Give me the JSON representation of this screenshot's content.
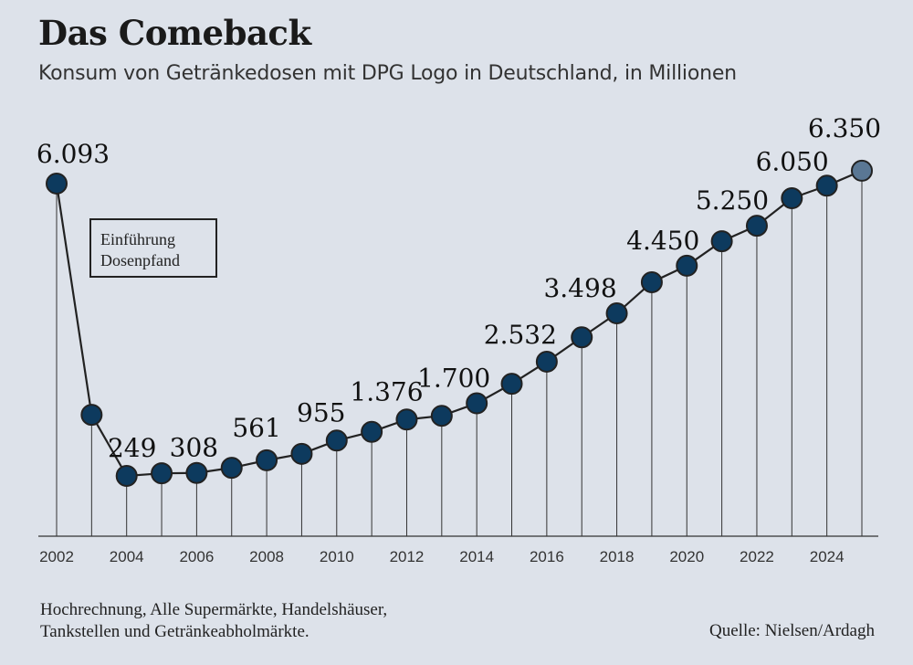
{
  "title": "Das Comeback",
  "subtitle": "Konsum von Getränkedosen mit DPG Logo in Deutschland, in Millionen",
  "annotation": {
    "line1": "Einführung",
    "line2": "Dosenpfand"
  },
  "footnote": {
    "line1": "Hochrechnung, Alle Supermärkte, Handelshäuser,",
    "line2": "Tankstellen und Getränkeabholmärkte."
  },
  "source": "Quelle: Nielsen/Ardagh",
  "colors": {
    "background": "#dde2ea",
    "point": "#0d3a5e",
    "projected_point": "#5a7794",
    "line": "#222222"
  },
  "chart_data": {
    "type": "line",
    "title": "Das Comeback",
    "subtitle": "Konsum von Getränkedosen mit DPG Logo in Deutschland, in Millionen",
    "xlabel": "",
    "ylabel": "",
    "x": [
      2002,
      2003,
      2004,
      2005,
      2006,
      2007,
      2008,
      2009,
      2010,
      2011,
      2012,
      2013,
      2014,
      2015,
      2016,
      2017,
      2018,
      2019,
      2020,
      2021,
      2022,
      2023,
      2024,
      2025
    ],
    "values": [
      6093,
      1470,
      249,
      300,
      308,
      410,
      561,
      690,
      955,
      1130,
      1376,
      1450,
      1700,
      2090,
      2532,
      3020,
      3498,
      4120,
      4450,
      4940,
      5250,
      5800,
      6050,
      6350
    ],
    "labels": {
      "2002": "6.093",
      "2004": "249",
      "2006": "308",
      "2008": "561",
      "2010": "955",
      "2012": "1.376",
      "2014": "1.700",
      "2016": "2.532",
      "2018": "3.498",
      "2020": "4.450",
      "2022": "5.250",
      "2024": "6.050",
      "2025": "6.350"
    },
    "x_ticks": [
      "2002",
      "2004",
      "2006",
      "2008",
      "2010",
      "2012",
      "2014",
      "2016",
      "2018",
      "2020",
      "2022",
      "2024"
    ],
    "projected": [
      2025
    ],
    "grid": false,
    "drop_lines": true
  }
}
